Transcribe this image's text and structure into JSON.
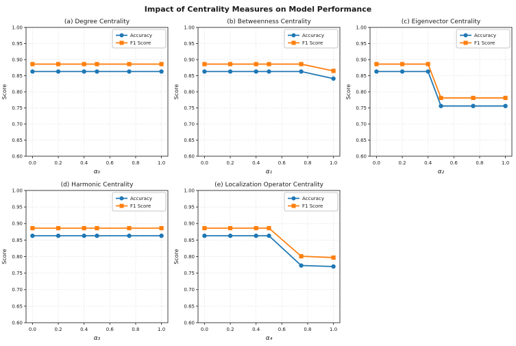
{
  "figure": {
    "title": "Impact of Centrality Measures on Model Performance",
    "background": "#ffffff"
  },
  "colors": {
    "accuracy": "#1f77b4",
    "f1_score": "#ff7f0e",
    "grid_line": "#c9c9c9",
    "spine": "#2b2b2b",
    "legend_border": "#b5b5b5"
  },
  "chart_data": [
    {
      "type": "line",
      "title": "(a) Degree Centrality",
      "xlabel": "α₀",
      "ylabel": "Score",
      "x": [
        0.0,
        0.2,
        0.4,
        0.5,
        0.75,
        1.0
      ],
      "series": [
        {
          "name": "Accuracy",
          "marker": "circle",
          "color": "#1f77b4",
          "values": [
            0.863,
            0.863,
            0.863,
            0.863,
            0.863,
            0.863
          ]
        },
        {
          "name": "F1 Score",
          "marker": "square",
          "color": "#ff7f0e",
          "values": [
            0.886,
            0.886,
            0.886,
            0.886,
            0.886,
            0.886
          ]
        }
      ],
      "xlim": [
        -0.05,
        1.05
      ],
      "ylim": [
        0.6,
        1.0
      ],
      "xticks": [
        0.0,
        0.2,
        0.4,
        0.6,
        0.8,
        1.0
      ],
      "yticks": [
        0.6,
        0.65,
        0.7,
        0.75,
        0.8,
        0.85,
        0.9,
        0.95,
        1.0
      ],
      "grid": true,
      "legend_position": "upper right"
    },
    {
      "type": "line",
      "title": "(b) Betweenness Centrality",
      "xlabel": "α₁",
      "ylabel": "Score",
      "x": [
        0.0,
        0.2,
        0.4,
        0.5,
        0.75,
        1.0
      ],
      "series": [
        {
          "name": "Accuracy",
          "marker": "circle",
          "color": "#1f77b4",
          "values": [
            0.863,
            0.863,
            0.863,
            0.863,
            0.863,
            0.841
          ]
        },
        {
          "name": "F1 Score",
          "marker": "square",
          "color": "#ff7f0e",
          "values": [
            0.886,
            0.886,
            0.886,
            0.886,
            0.886,
            0.865
          ]
        }
      ],
      "xlim": [
        -0.05,
        1.05
      ],
      "ylim": [
        0.6,
        1.0
      ],
      "xticks": [
        0.0,
        0.2,
        0.4,
        0.6,
        0.8,
        1.0
      ],
      "yticks": [
        0.6,
        0.65,
        0.7,
        0.75,
        0.8,
        0.85,
        0.9,
        0.95,
        1.0
      ],
      "grid": true,
      "legend_position": "upper right"
    },
    {
      "type": "line",
      "title": "(c) Eigenvector Centrality",
      "xlabel": "α₂",
      "ylabel": "Score",
      "x": [
        0.0,
        0.2,
        0.4,
        0.5,
        0.75,
        1.0
      ],
      "series": [
        {
          "name": "Accuracy",
          "marker": "circle",
          "color": "#1f77b4",
          "values": [
            0.863,
            0.863,
            0.863,
            0.756,
            0.756,
            0.756
          ]
        },
        {
          "name": "F1 Score",
          "marker": "square",
          "color": "#ff7f0e",
          "values": [
            0.886,
            0.886,
            0.886,
            0.781,
            0.781,
            0.781
          ]
        }
      ],
      "xlim": [
        -0.05,
        1.05
      ],
      "ylim": [
        0.6,
        1.0
      ],
      "xticks": [
        0.0,
        0.2,
        0.4,
        0.6,
        0.8,
        1.0
      ],
      "yticks": [
        0.6,
        0.65,
        0.7,
        0.75,
        0.8,
        0.85,
        0.9,
        0.95,
        1.0
      ],
      "grid": true,
      "legend_position": "upper right"
    },
    {
      "type": "line",
      "title": "(d) Harmonic Centrality",
      "xlabel": "α₃",
      "ylabel": "Score",
      "x": [
        0.0,
        0.2,
        0.4,
        0.5,
        0.75,
        1.0
      ],
      "series": [
        {
          "name": "Accuracy",
          "marker": "circle",
          "color": "#1f77b4",
          "values": [
            0.863,
            0.863,
            0.863,
            0.863,
            0.863,
            0.863
          ]
        },
        {
          "name": "F1 Score",
          "marker": "square",
          "color": "#ff7f0e",
          "values": [
            0.886,
            0.886,
            0.886,
            0.886,
            0.886,
            0.886
          ]
        }
      ],
      "xlim": [
        -0.05,
        1.05
      ],
      "ylim": [
        0.6,
        1.0
      ],
      "xticks": [
        0.0,
        0.2,
        0.4,
        0.6,
        0.8,
        1.0
      ],
      "yticks": [
        0.6,
        0.65,
        0.7,
        0.75,
        0.8,
        0.85,
        0.9,
        0.95,
        1.0
      ],
      "grid": true,
      "legend_position": "upper right"
    },
    {
      "type": "line",
      "title": "(e) Localization Operator Centrality",
      "xlabel": "α₄",
      "ylabel": "Score",
      "x": [
        0.0,
        0.2,
        0.4,
        0.5,
        0.75,
        1.0
      ],
      "series": [
        {
          "name": "Accuracy",
          "marker": "circle",
          "color": "#1f77b4",
          "values": [
            0.863,
            0.863,
            0.863,
            0.863,
            0.773,
            0.77
          ]
        },
        {
          "name": "F1 Score",
          "marker": "square",
          "color": "#ff7f0e",
          "values": [
            0.886,
            0.886,
            0.886,
            0.886,
            0.801,
            0.797
          ]
        }
      ],
      "xlim": [
        -0.05,
        1.05
      ],
      "ylim": [
        0.6,
        1.0
      ],
      "xticks": [
        0.0,
        0.2,
        0.4,
        0.6,
        0.8,
        1.0
      ],
      "yticks": [
        0.6,
        0.65,
        0.7,
        0.75,
        0.8,
        0.85,
        0.9,
        0.95,
        1.0
      ],
      "grid": true,
      "legend_position": "upper right"
    }
  ]
}
